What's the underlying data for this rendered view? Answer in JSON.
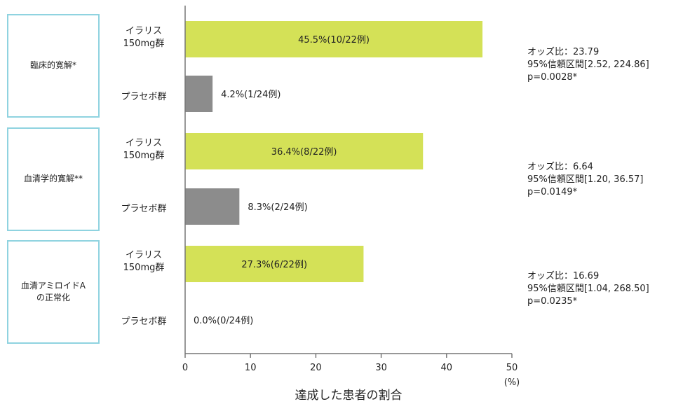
{
  "groups": [
    {
      "label": "臨床的寛解*"
    },
    {
      "label": "血清学的寛解**"
    },
    {
      "label": "血清アミロイドA\nの正常化"
    }
  ],
  "arms": {
    "treatment": "イラリス\n150mg群",
    "placebo": "プラセボ群"
  },
  "stats": [
    {
      "or": "オッズ比：23.79",
      "ci": "95%信頼区間[2.52, 224.86]",
      "p": "p=0.0028*"
    },
    {
      "or": "オッズ比：6.64",
      "ci": "95%信頼区間[1.20, 36.57]",
      "p": "p=0.0149*"
    },
    {
      "or": "オッズ比：16.69",
      "ci": "95%信頼区間[1.04, 268.50]",
      "p": "p=0.0235*"
    }
  ],
  "axis": {
    "xlabel": "達成した患者の割合",
    "unit": "(%)"
  },
  "colors": {
    "treatment": "#d4e157",
    "placebo": "#8c8c8c",
    "box_border": "#8fd3e0"
  },
  "chart_data": {
    "type": "bar",
    "orientation": "horizontal",
    "xlim": [
      0,
      50
    ],
    "xticks": [
      0,
      10,
      20,
      30,
      40,
      50
    ],
    "xlabel": "達成した患者の割合",
    "unit": "(%)",
    "bars": [
      {
        "group": "臨床的寛解*",
        "arm": "イラリス150mg群",
        "value": 45.5,
        "label": "45.5%(10/22例)"
      },
      {
        "group": "臨床的寛解*",
        "arm": "プラセボ群",
        "value": 4.2,
        "label": "4.2%(1/24例)"
      },
      {
        "group": "血清学的寛解**",
        "arm": "イラリス150mg群",
        "value": 36.4,
        "label": "36.4%(8/22例)"
      },
      {
        "group": "血清学的寛解**",
        "arm": "プラセボ群",
        "value": 8.3,
        "label": "8.3%(2/24例)"
      },
      {
        "group": "血清アミロイドAの正常化",
        "arm": "イラリス150mg群",
        "value": 27.3,
        "label": "27.3%(6/22例)"
      },
      {
        "group": "血清アミロイドAの正常化",
        "arm": "プラセボ群",
        "value": 0.0,
        "label": "0.0%(0/24例)"
      }
    ]
  }
}
